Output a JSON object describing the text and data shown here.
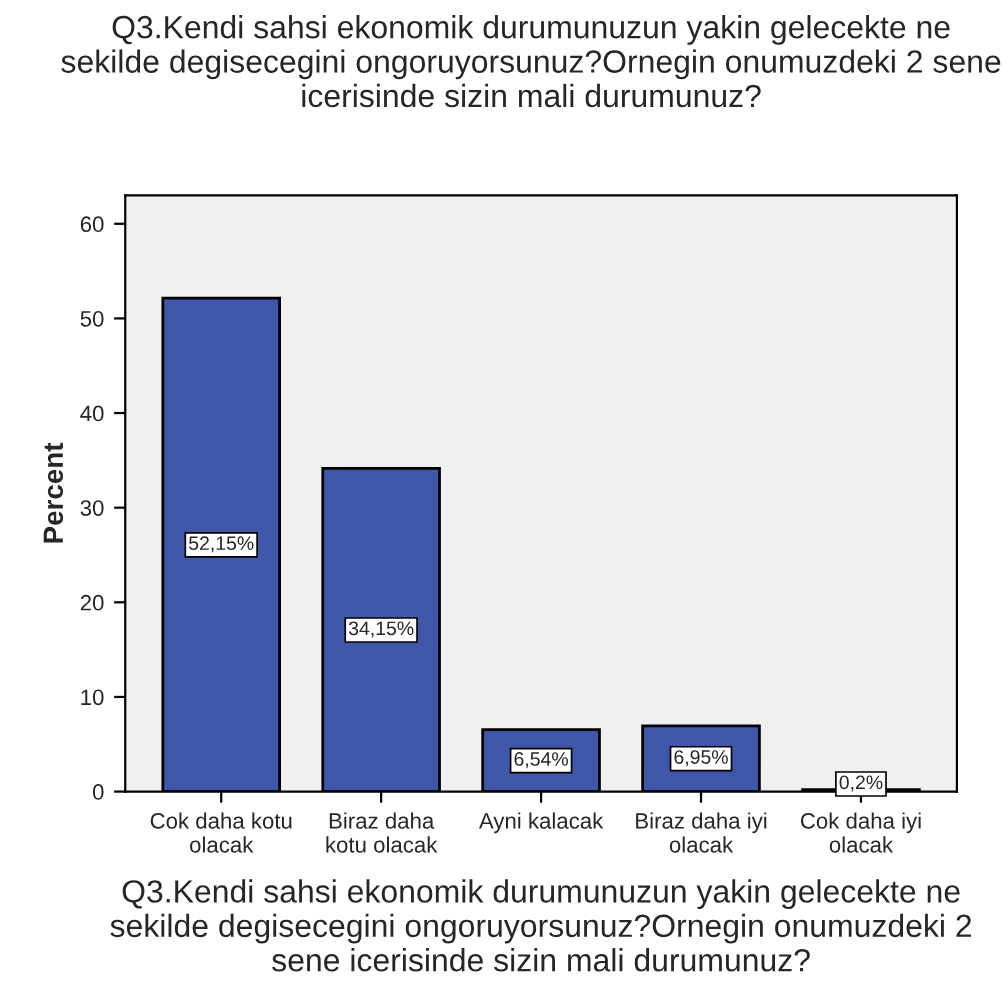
{
  "chart_data": {
    "type": "bar",
    "title": "Q3.Kendi sahsi ekonomik durumunuzun yakin gelecekte ne sekilde degisecegini ongoruyorsunuz?Ornegin onumuzdeki 2 sene icerisinde sizin mali durumunuz?",
    "xlabel": "Q3.Kendi sahsi ekonomik durumunuzun yakin gelecekte ne sekilde degisecegini ongoruyorsunuz?Ornegin onumuzdeki 2 sene icerisinde sizin mali durumunuz?",
    "ylabel": "Percent",
    "categories": [
      "Cok daha kotu\nolacak",
      "Biraz daha\nkotu olacak",
      "Ayni kalacak",
      "Biraz daha iyi\nolacak",
      "Cok daha iyi\nolacak"
    ],
    "values": [
      52.15,
      34.15,
      6.54,
      6.95,
      0.2
    ],
    "value_labels": [
      "52,15%",
      "34,15%",
      "6,54%",
      "6,95%",
      "0,2%"
    ],
    "color": "#3f57a8",
    "ylim": [
      0,
      63
    ],
    "yticks": [
      0,
      10,
      20,
      30,
      40,
      50,
      60
    ],
    "grid": false
  }
}
